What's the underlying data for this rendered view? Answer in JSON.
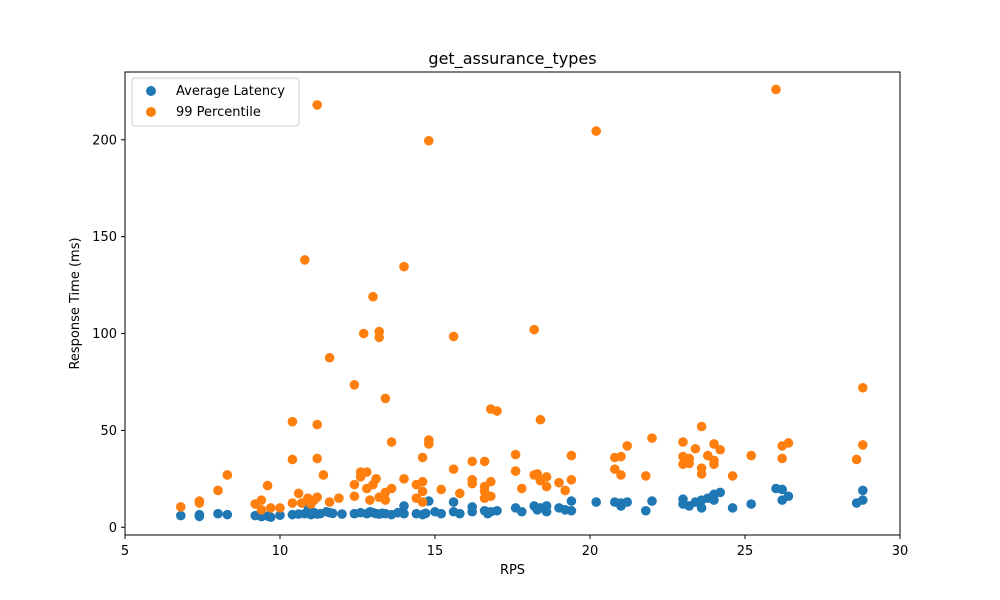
{
  "chart_data": {
    "type": "scatter",
    "title": "get_assurance_types",
    "xlabel": "RPS",
    "ylabel": "Response Time (ms)",
    "xlim": [
      5,
      30
    ],
    "ylim": [
      -4,
      235
    ],
    "xticks": [
      5,
      10,
      15,
      20,
      25,
      30
    ],
    "yticks": [
      0,
      50,
      100,
      150,
      200
    ],
    "grid": false,
    "legend_position": "top-left",
    "series": [
      {
        "name": "Average Latency",
        "color": "#1f77b4",
        "points": [
          [
            6.8,
            6.0
          ],
          [
            7.4,
            6.5
          ],
          [
            7.4,
            5.6
          ],
          [
            8.0,
            7.0
          ],
          [
            8.3,
            6.5
          ],
          [
            9.2,
            6.0
          ],
          [
            9.4,
            5.5
          ],
          [
            9.6,
            5.8
          ],
          [
            9.7,
            5.2
          ],
          [
            10.0,
            6.2
          ],
          [
            10.4,
            6.5
          ],
          [
            10.6,
            6.8
          ],
          [
            10.8,
            7.0
          ],
          [
            10.9,
            11.0
          ],
          [
            11.0,
            6.5
          ],
          [
            11.1,
            7.5
          ],
          [
            11.2,
            6.8
          ],
          [
            11.3,
            7.0
          ],
          [
            11.5,
            8.0
          ],
          [
            11.6,
            7.5
          ],
          [
            11.7,
            7.2
          ],
          [
            12.0,
            6.8
          ],
          [
            12.4,
            7.0
          ],
          [
            12.6,
            7.5
          ],
          [
            12.8,
            7.0
          ],
          [
            12.9,
            8.0
          ],
          [
            13.0,
            7.5
          ],
          [
            13.1,
            7.0
          ],
          [
            13.2,
            6.8
          ],
          [
            13.3,
            7.2
          ],
          [
            13.4,
            7.0
          ],
          [
            13.6,
            6.5
          ],
          [
            13.8,
            7.5
          ],
          [
            14.0,
            11.0
          ],
          [
            14.0,
            7.0
          ],
          [
            14.4,
            7.0
          ],
          [
            14.6,
            6.5
          ],
          [
            14.7,
            7.2
          ],
          [
            14.8,
            13.5
          ],
          [
            15.0,
            8.0
          ],
          [
            15.2,
            7.0
          ],
          [
            15.6,
            13.0
          ],
          [
            15.6,
            8.0
          ],
          [
            15.8,
            7.0
          ],
          [
            16.2,
            10.5
          ],
          [
            16.2,
            8.0
          ],
          [
            16.6,
            8.5
          ],
          [
            16.7,
            7.0
          ],
          [
            16.8,
            8.0
          ],
          [
            17.0,
            8.5
          ],
          [
            17.6,
            10.0
          ],
          [
            17.8,
            8.0
          ],
          [
            18.2,
            11.0
          ],
          [
            18.3,
            9.0
          ],
          [
            18.4,
            10.0
          ],
          [
            18.6,
            11.0
          ],
          [
            18.6,
            8.0
          ],
          [
            19.0,
            10.0
          ],
          [
            19.2,
            9.0
          ],
          [
            19.4,
            13.5
          ],
          [
            19.4,
            8.5
          ],
          [
            20.2,
            13.0
          ],
          [
            20.8,
            13.0
          ],
          [
            21.0,
            12.5
          ],
          [
            21.0,
            11.0
          ],
          [
            21.2,
            13.0
          ],
          [
            21.8,
            8.5
          ],
          [
            22.0,
            13.5
          ],
          [
            23.0,
            14.5
          ],
          [
            23.0,
            12.0
          ],
          [
            23.2,
            11.0
          ],
          [
            23.4,
            13.0
          ],
          [
            23.6,
            14.0
          ],
          [
            23.6,
            10.0
          ],
          [
            23.8,
            15.0
          ],
          [
            24.0,
            17.0
          ],
          [
            24.0,
            14.0
          ],
          [
            24.2,
            18.0
          ],
          [
            24.6,
            10.0
          ],
          [
            25.2,
            12.0
          ],
          [
            26.0,
            20.0
          ],
          [
            26.2,
            19.5
          ],
          [
            26.2,
            14.0
          ],
          [
            26.4,
            16.0
          ],
          [
            28.6,
            12.5
          ],
          [
            28.8,
            19.0
          ],
          [
            28.8,
            14.0
          ]
        ]
      },
      {
        "name": "99 Percentile",
        "color": "#ff7f0e",
        "points": [
          [
            6.8,
            10.5
          ],
          [
            7.4,
            13.5
          ],
          [
            7.4,
            12.5
          ],
          [
            8.0,
            19.0
          ],
          [
            8.3,
            27.0
          ],
          [
            9.2,
            12.0
          ],
          [
            9.4,
            14.0
          ],
          [
            9.4,
            9.0
          ],
          [
            9.6,
            21.5
          ],
          [
            9.7,
            10.0
          ],
          [
            10.0,
            10.0
          ],
          [
            10.4,
            35.0
          ],
          [
            10.4,
            54.5
          ],
          [
            10.4,
            12.5
          ],
          [
            10.6,
            17.5
          ],
          [
            10.7,
            12.5
          ],
          [
            10.8,
            138.0
          ],
          [
            10.9,
            15.0
          ],
          [
            11.0,
            12.0
          ],
          [
            11.1,
            14.0
          ],
          [
            11.2,
            218.0
          ],
          [
            11.2,
            53.0
          ],
          [
            11.2,
            35.5
          ],
          [
            11.2,
            15.5
          ],
          [
            11.4,
            27.0
          ],
          [
            11.6,
            87.5
          ],
          [
            11.6,
            13.0
          ],
          [
            11.9,
            15.0
          ],
          [
            12.4,
            73.5
          ],
          [
            12.4,
            22.0
          ],
          [
            12.4,
            16.0
          ],
          [
            12.6,
            28.5
          ],
          [
            12.6,
            26.0
          ],
          [
            12.7,
            100.0
          ],
          [
            12.8,
            28.5
          ],
          [
            12.8,
            20.0
          ],
          [
            12.9,
            14.0
          ],
          [
            13.0,
            119.0
          ],
          [
            13.0,
            22.0
          ],
          [
            13.1,
            25.0
          ],
          [
            13.2,
            101.0
          ],
          [
            13.2,
            98.0
          ],
          [
            13.2,
            15.5
          ],
          [
            13.4,
            66.5
          ],
          [
            13.4,
            18.0
          ],
          [
            13.4,
            14.0
          ],
          [
            13.6,
            44.0
          ],
          [
            13.6,
            20.0
          ],
          [
            14.0,
            134.5
          ],
          [
            14.0,
            25.0
          ],
          [
            14.4,
            22.0
          ],
          [
            14.4,
            15.0
          ],
          [
            14.6,
            36.0
          ],
          [
            14.6,
            23.5
          ],
          [
            14.6,
            18.5
          ],
          [
            14.6,
            13.0
          ],
          [
            14.8,
            199.5
          ],
          [
            14.8,
            45.0
          ],
          [
            14.8,
            43.0
          ],
          [
            15.2,
            19.5
          ],
          [
            15.6,
            98.5
          ],
          [
            15.6,
            30.0
          ],
          [
            15.8,
            17.5
          ],
          [
            16.2,
            34.0
          ],
          [
            16.2,
            24.5
          ],
          [
            16.2,
            22.5
          ],
          [
            16.6,
            34.0
          ],
          [
            16.6,
            21.0
          ],
          [
            16.6,
            18.5
          ],
          [
            16.6,
            15.0
          ],
          [
            16.8,
            61.0
          ],
          [
            16.8,
            23.5
          ],
          [
            16.8,
            16.0
          ],
          [
            17.0,
            60.0
          ],
          [
            17.6,
            37.5
          ],
          [
            17.6,
            29.0
          ],
          [
            17.8,
            20.0
          ],
          [
            18.2,
            102.0
          ],
          [
            18.2,
            27.0
          ],
          [
            18.3,
            27.5
          ],
          [
            18.4,
            55.5
          ],
          [
            18.4,
            24.0
          ],
          [
            18.6,
            26.0
          ],
          [
            18.6,
            21.0
          ],
          [
            19.0,
            23.0
          ],
          [
            19.2,
            19.0
          ],
          [
            19.4,
            37.0
          ],
          [
            19.4,
            24.5
          ],
          [
            20.2,
            204.5
          ],
          [
            20.8,
            36.0
          ],
          [
            20.8,
            30.0
          ],
          [
            21.0,
            36.5
          ],
          [
            21.0,
            27.0
          ],
          [
            21.2,
            42.0
          ],
          [
            21.8,
            26.5
          ],
          [
            22.0,
            46.0
          ],
          [
            23.0,
            44.0
          ],
          [
            23.0,
            36.5
          ],
          [
            23.0,
            32.5
          ],
          [
            23.2,
            35.5
          ],
          [
            23.2,
            33.0
          ],
          [
            23.4,
            40.5
          ],
          [
            23.6,
            52.0
          ],
          [
            23.6,
            30.5
          ],
          [
            23.6,
            27.5
          ],
          [
            23.8,
            37.0
          ],
          [
            24.0,
            43.0
          ],
          [
            24.0,
            34.5
          ],
          [
            24.0,
            32.5
          ],
          [
            24.2,
            40.0
          ],
          [
            24.6,
            26.5
          ],
          [
            25.2,
            37.0
          ],
          [
            26.0,
            226.0
          ],
          [
            26.2,
            42.0
          ],
          [
            26.2,
            35.5
          ],
          [
            26.4,
            43.5
          ],
          [
            28.6,
            35.0
          ],
          [
            28.8,
            72.0
          ],
          [
            28.8,
            42.5
          ]
        ]
      }
    ]
  }
}
